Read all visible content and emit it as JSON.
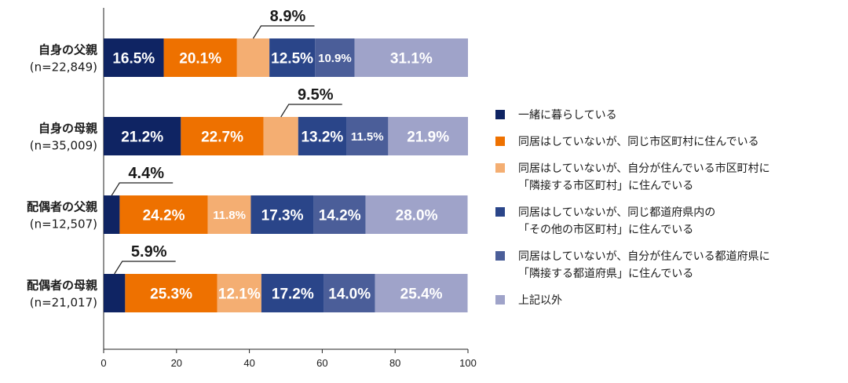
{
  "chart_data": {
    "type": "bar",
    "orientation": "horizontal",
    "stacked": true,
    "categories": [
      {
        "name": "自身の父親",
        "n": "(n=22,849)"
      },
      {
        "name": "自身の母親",
        "n": "(n=35,009)"
      },
      {
        "name": "配偶者の父親",
        "n": "(n=12,507)"
      },
      {
        "name": "配偶者の母親",
        "n": "(n=21,017)"
      }
    ],
    "series": [
      {
        "name": "一緒に暮らしている",
        "legend_lines": [
          "一緒に暮らしている"
        ],
        "color": "#0f2463",
        "values": [
          16.5,
          21.2,
          4.4,
          5.9
        ],
        "labels": [
          "16.5%",
          "21.2%",
          "4.4%",
          "5.9%"
        ],
        "callout": [
          false,
          false,
          true,
          true
        ]
      },
      {
        "name": "同居はしていないが、同じ市区町村に住んでいる",
        "legend_lines": [
          "同居はしていないが、同じ市区町村に住んでいる"
        ],
        "color": "#ee7100",
        "values": [
          20.1,
          22.7,
          24.2,
          25.3
        ],
        "labels": [
          "20.1%",
          "22.7%",
          "24.2%",
          "25.3%"
        ],
        "callout": [
          false,
          false,
          false,
          false
        ]
      },
      {
        "name": "同居はしていないが、自分が住んでいる市区町村に「隣接する市区町村」に住んでいる",
        "legend_lines": [
          "同居はしていないが、自分が住んでいる市区町村に",
          "「隣接する市区町村」に住んでいる"
        ],
        "color": "#f4ae72",
        "values": [
          8.9,
          9.5,
          11.8,
          12.1
        ],
        "labels": [
          "8.9%",
          "9.5%",
          "11.8%",
          "12.1%"
        ],
        "callout": [
          true,
          true,
          false,
          false
        ]
      },
      {
        "name": "同居はしていないが、同じ都道府県内の「その他の市区町村」に住んでいる",
        "legend_lines": [
          "同居はしていないが、同じ都道府県内の",
          "「その他の市区町村」に住んでいる"
        ],
        "color": "#2a4589",
        "values": [
          12.5,
          13.2,
          17.3,
          17.2
        ],
        "labels": [
          "12.5%",
          "13.2%",
          "17.3%",
          "17.2%"
        ],
        "callout": [
          false,
          false,
          false,
          false
        ]
      },
      {
        "name": "同居はしていないが、自分が住んでいる都道府県に「隣接する都道府県」に住んでいる",
        "legend_lines": [
          "同居はしていないが、自分が住んでいる都道府県に",
          "「隣接する都道府県」に住んでいる"
        ],
        "color": "#4b5e99",
        "values": [
          10.9,
          11.5,
          14.2,
          14.0
        ],
        "labels": [
          "10.9%",
          "11.5%",
          "14.2%",
          "14.0%"
        ],
        "callout": [
          false,
          false,
          false,
          false
        ]
      },
      {
        "name": "上記以外",
        "legend_lines": [
          "上記以外"
        ],
        "color": "#9fa3c9",
        "values": [
          31.1,
          21.9,
          28.0,
          25.4
        ],
        "labels": [
          "31.1%",
          "21.9%",
          "28.0%",
          "25.4%"
        ],
        "callout": [
          false,
          false,
          false,
          false
        ]
      }
    ],
    "x_ticks": [
      "0",
      "20",
      "40",
      "60",
      "80",
      "100"
    ],
    "xlim": [
      0,
      100
    ],
    "grid": false,
    "legend_position": "right"
  }
}
